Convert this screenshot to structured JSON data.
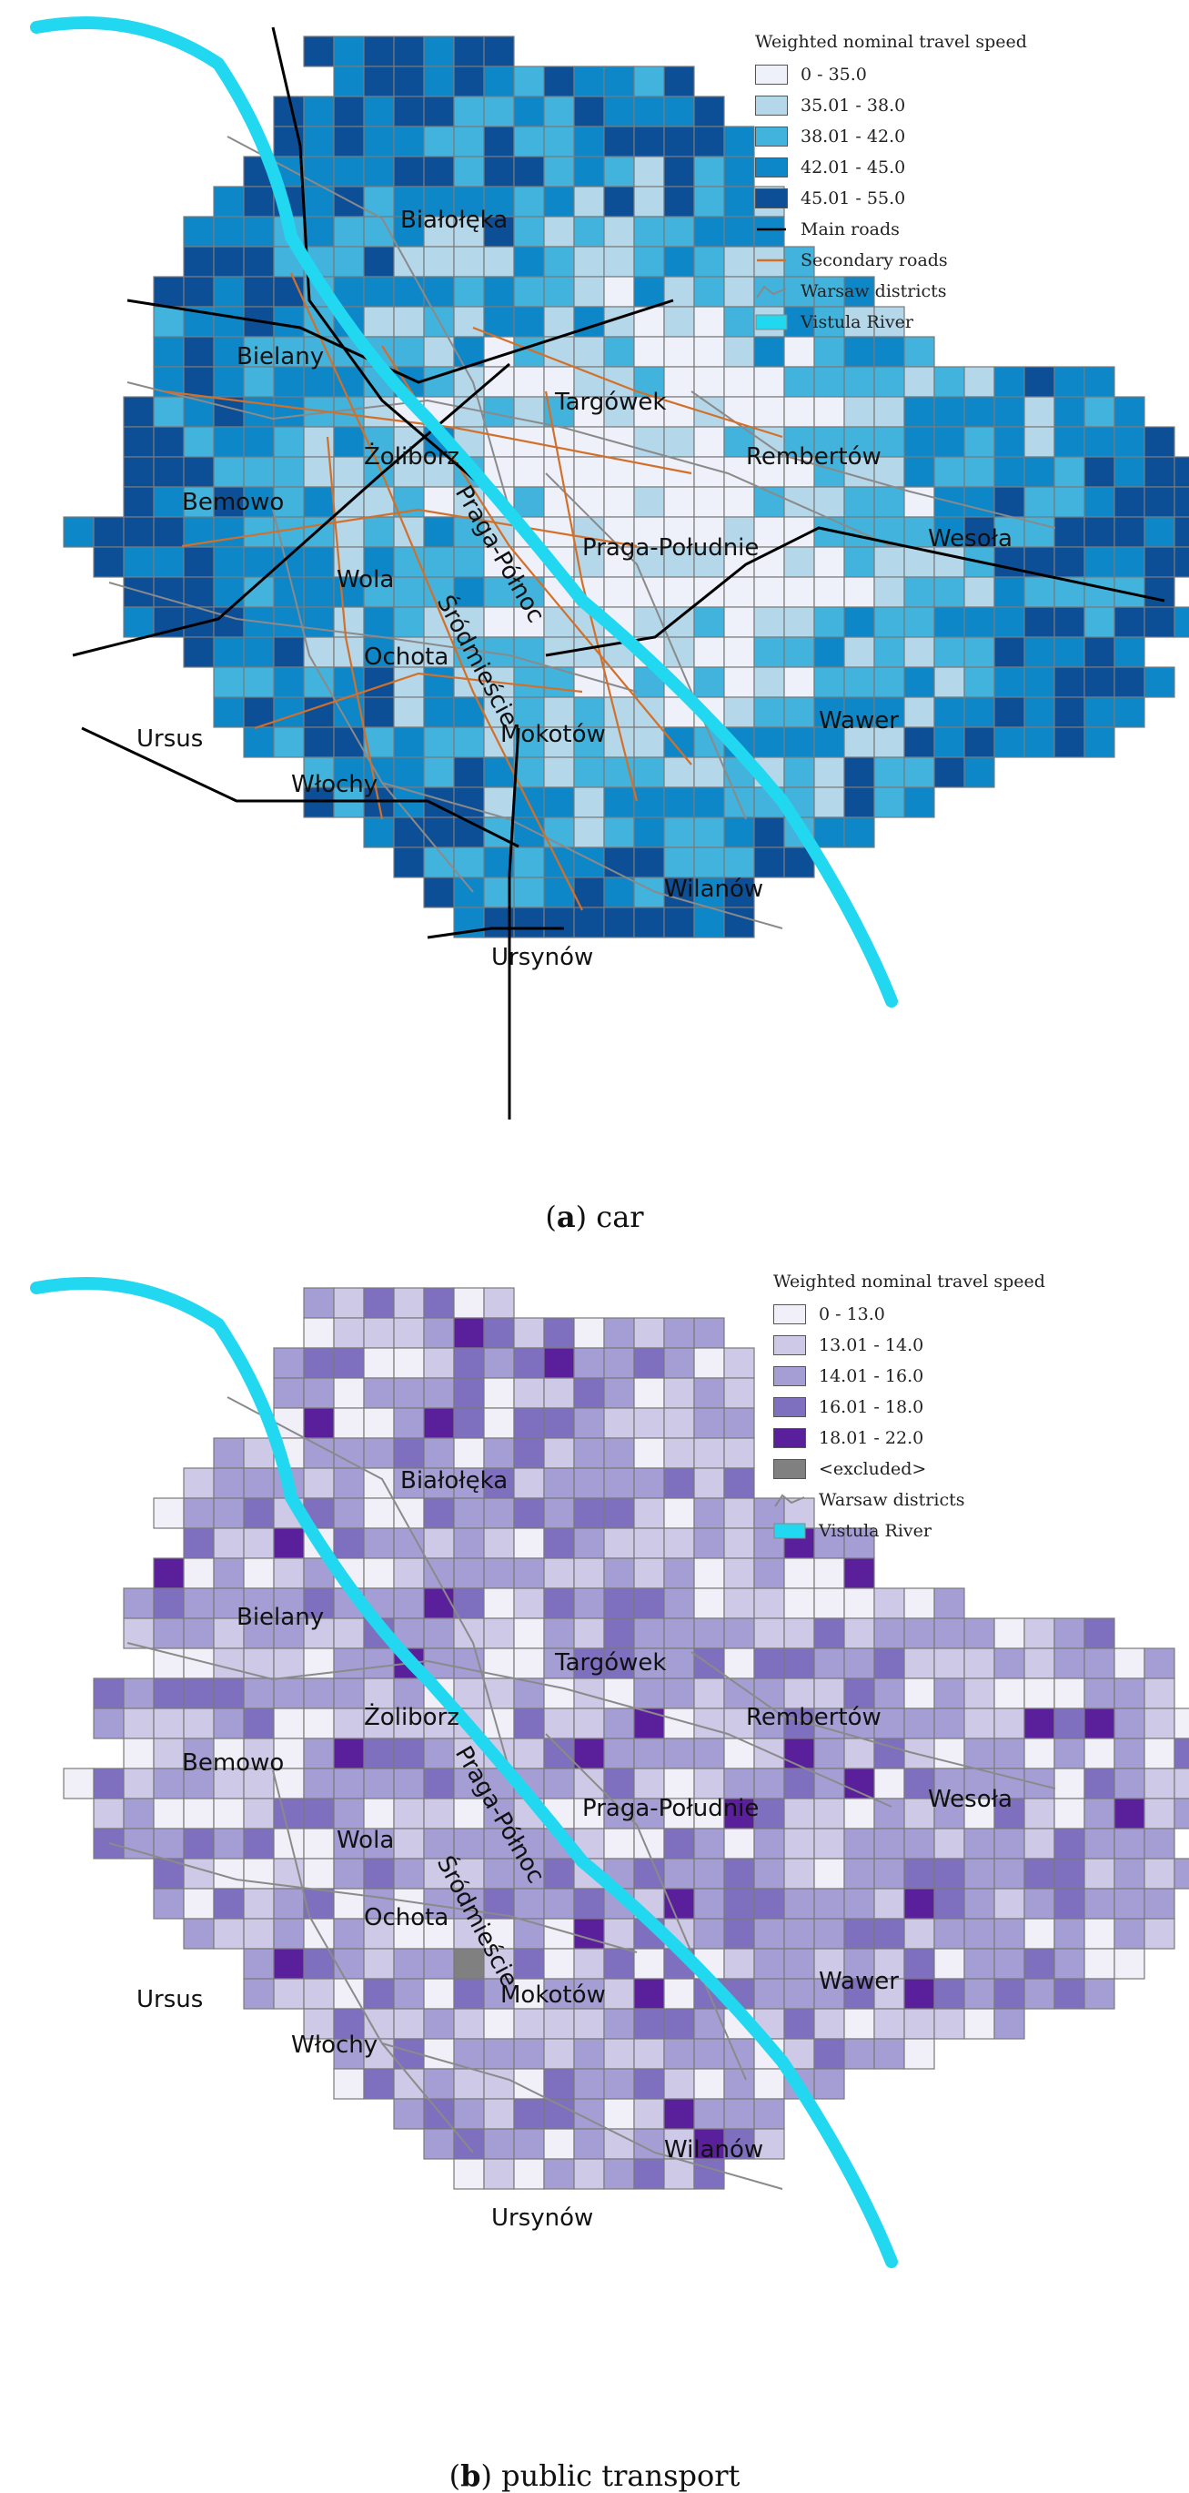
{
  "panels": [
    {
      "id": "a",
      "caption_letter": "a",
      "caption_text": "car",
      "legend": {
        "title": "Weighted nominal travel speed",
        "classes": [
          {
            "label": "0 - 35.0",
            "color": "#eef1fa"
          },
          {
            "label": "35.01 - 38.0",
            "color": "#b5d7ea"
          },
          {
            "label": "38.01 - 42.0",
            "color": "#42b3dc"
          },
          {
            "label": "42.01 - 45.0",
            "color": "#0e87c8"
          },
          {
            "label": "45.01 - 55.0",
            "color": "#0c4f97"
          }
        ],
        "lines": [
          {
            "label": "Main roads",
            "color": "#000000"
          },
          {
            "label": "Secondary roads",
            "color": "#d2702a"
          },
          {
            "label": "Warsaw districts",
            "color": "#888888"
          },
          {
            "label": "Vistula River",
            "color": "#22d8f0"
          }
        ]
      },
      "districts": [
        "Białołęka",
        "Bielany",
        "Targówek",
        "Żoliborz",
        "Praga-Północ",
        "Rembertów",
        "Bemowo",
        "Śródmieście",
        "Praga-Południe",
        "Wesoła",
        "Wola",
        "Ochota",
        "Ursus",
        "Mokotów",
        "Wawer",
        "Włochy",
        "Wilanów",
        "Ursynów"
      ]
    },
    {
      "id": "b",
      "caption_letter": "b",
      "caption_text": "public transport",
      "legend": {
        "title": "Weighted nominal travel speed",
        "classes": [
          {
            "label": "0 - 13.0",
            "color": "#f1f0f8"
          },
          {
            "label": "13.01 - 14.0",
            "color": "#cdc9e6"
          },
          {
            "label": "14.01 - 16.0",
            "color": "#a59ed4"
          },
          {
            "label": "16.01 - 18.0",
            "color": "#7f6fbf"
          },
          {
            "label": "18.01 - 22.0",
            "color": "#5a1f9a"
          },
          {
            "label": "<excluded>",
            "color": "#808080"
          }
        ],
        "lines": [
          {
            "label": "Warsaw districts",
            "color": "#888888"
          },
          {
            "label": "Vistula River",
            "color": "#22d8f0"
          }
        ]
      },
      "districts": [
        "Białołęka",
        "Bielany",
        "Targówek",
        "Żoliborz",
        "Praga-Północ",
        "Rembertów",
        "Bemowo",
        "Śródmieście",
        "Praga-Południe",
        "Wesoła",
        "Wola",
        "Ochota",
        "Ursus",
        "Mokotów",
        "Wawer",
        "Włochy",
        "Wilanów",
        "Ursynów"
      ]
    }
  ]
}
